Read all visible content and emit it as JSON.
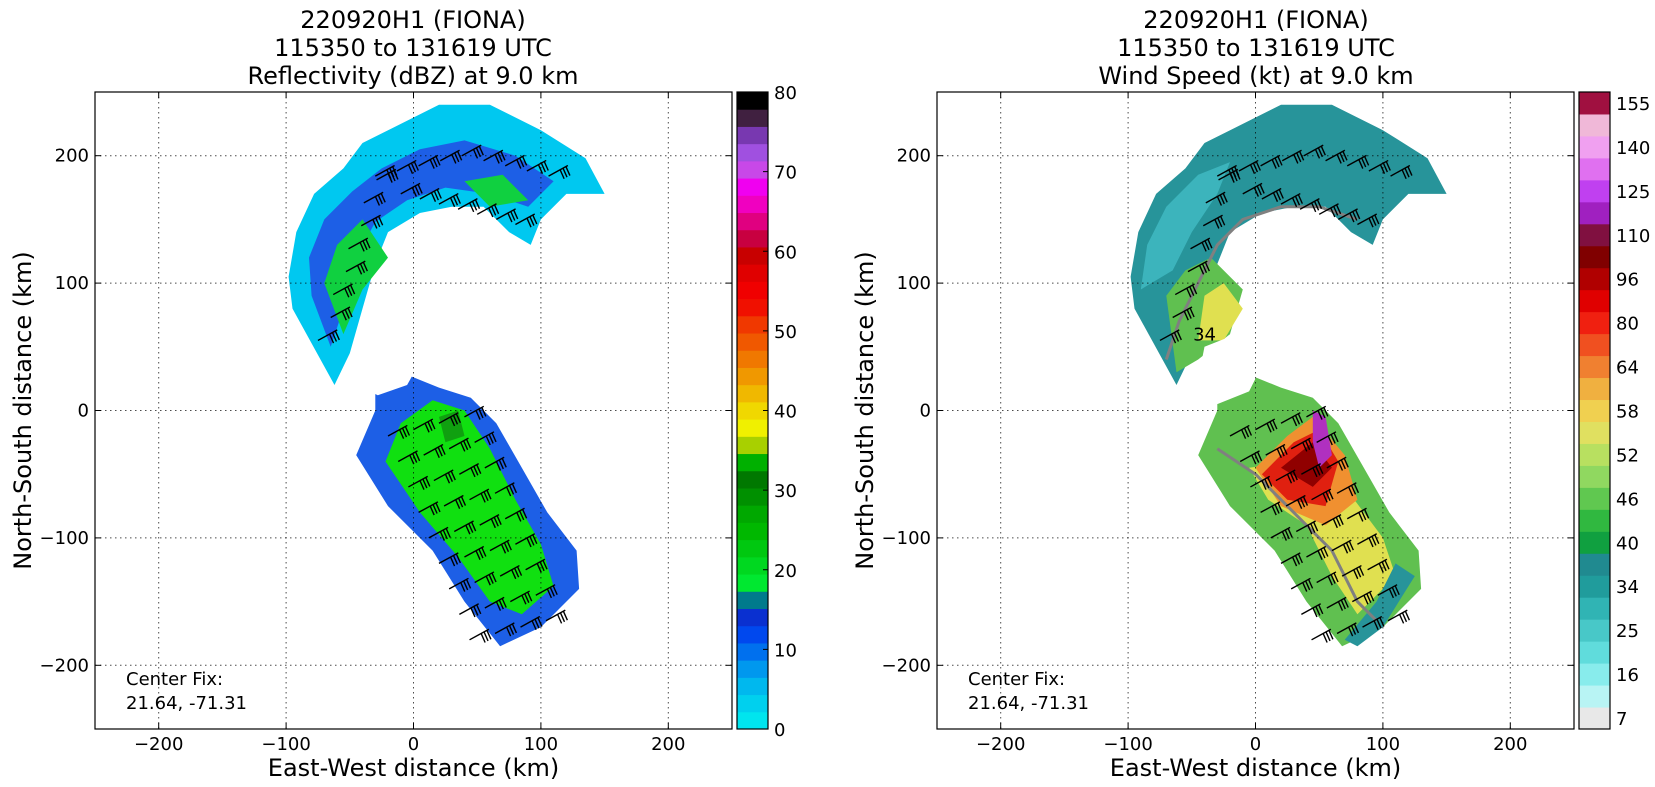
{
  "chart_data": [
    {
      "type": "heatmap",
      "title_lines": [
        "220920H1 (FIONA)",
        "115350 to 131619 UTC",
        "Reflectivity (dBZ) at 9.0 km"
      ],
      "xlabel": "East-West distance (km)",
      "ylabel": "North-South distance (km)",
      "xlim": [
        -250,
        250
      ],
      "ylim": [
        -250,
        250
      ],
      "xticks": [
        -200,
        -100,
        0,
        100,
        200
      ],
      "yticks": [
        -200,
        -100,
        0,
        100,
        200
      ],
      "xtick_labels": [
        "−200",
        "−100",
        "0",
        "100",
        "200"
      ],
      "ytick_labels": [
        "−200",
        "−100",
        "0",
        "100",
        "200"
      ],
      "grid": true,
      "annotation_lines": [
        "Center Fix:",
        "21.64, -71.31"
      ],
      "colorbar": {
        "ticks": [
          0,
          10,
          20,
          30,
          40,
          50,
          60,
          70,
          80
        ],
        "tick_labels": [
          "0",
          "10",
          "20",
          "30",
          "40",
          "50",
          "60",
          "70",
          "80"
        ],
        "range": [
          0,
          80
        ],
        "colors": [
          "#00e5ee",
          "#00d0ee",
          "#00b8ee",
          "#0098ee",
          "#0070ee",
          "#0048ee",
          "#0a30d0",
          "#007a8c",
          "#00e830",
          "#00d820",
          "#00c810",
          "#00b800",
          "#00a800",
          "#009000",
          "#007800",
          "#00b000",
          "#a8d000",
          "#f0f000",
          "#f0d800",
          "#f0b800",
          "#f09800",
          "#f07800",
          "#f05800",
          "#f03800",
          "#f01000",
          "#f00000",
          "#e00000",
          "#c80000",
          "#c80040",
          "#e00080",
          "#f000c0",
          "#f000f0",
          "#c848e8",
          "#a050e0",
          "#7838b0",
          "#402040",
          "#000000"
        ]
      },
      "field_colors": {
        "outer": "#00c8f0",
        "band": "#1d5fe6",
        "body": "#10e010",
        "embed": "#10d040",
        "inner": "#10a010"
      }
    },
    {
      "type": "heatmap",
      "title_lines": [
        "220920H1 (FIONA)",
        "115350 to 131619 UTC",
        "Wind Speed (kt) at 9.0 km"
      ],
      "xlabel": "East-West distance (km)",
      "ylabel": "North-South distance (km)",
      "xlim": [
        -250,
        250
      ],
      "ylim": [
        -250,
        250
      ],
      "xticks": [
        -200,
        -100,
        0,
        100,
        200
      ],
      "yticks": [
        -200,
        -100,
        0,
        100,
        200
      ],
      "xtick_labels": [
        "−200",
        "−100",
        "0",
        "100",
        "200"
      ],
      "ytick_labels": [
        "−200",
        "−100",
        "0",
        "100",
        "200"
      ],
      "grid": true,
      "annotation_lines": [
        "Center Fix:",
        "21.64, -71.31"
      ],
      "contour_label": "34",
      "colorbar": {
        "tick_labels": [
          "7",
          "16",
          "25",
          "34",
          "40",
          "46",
          "52",
          "58",
          "64",
          "80",
          "96",
          "110",
          "125",
          "140",
          "155"
        ],
        "n_colors": 29,
        "colors": [
          "#e8e8e8",
          "#b8f4f4",
          "#88ecec",
          "#60dcdc",
          "#48c8c8",
          "#30b4b4",
          "#209c9c",
          "#208a90",
          "#10a040",
          "#30b840",
          "#60c850",
          "#90d860",
          "#b8e060",
          "#e0e060",
          "#f0d050",
          "#f0b040",
          "#f08030",
          "#f05020",
          "#f02010",
          "#e00000",
          "#b00000",
          "#800000",
          "#801040",
          "#a020c0",
          "#c040f0",
          "#e070f0",
          "#f0a0f0",
          "#f0b8d8",
          "#a01040"
        ],
        "range_labels_span": [
          0,
          28
        ]
      },
      "field_colors": {
        "teal": "#27949a",
        "teal_light": "#3cb4bc",
        "green": "#60c050",
        "yellow": "#e0e050",
        "orange": "#f09030",
        "red": "#e02010",
        "darkred": "#900000",
        "magenta": "#b030c0",
        "gray_contour": "#808080"
      }
    }
  ]
}
